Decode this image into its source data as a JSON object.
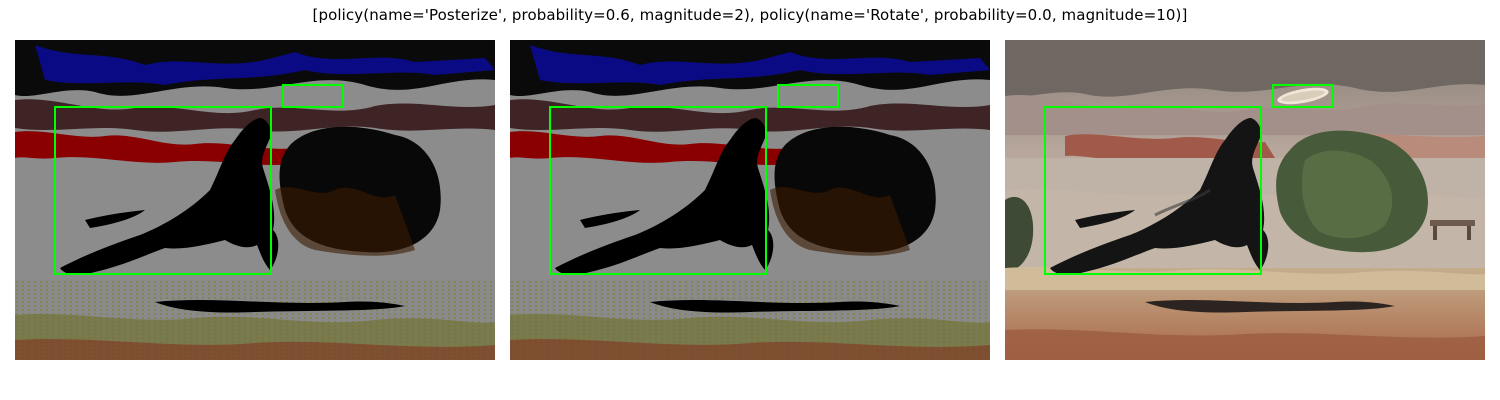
{
  "figure": {
    "title": "[policy(name='Posterize', probability=0.6, magnitude=2), policy(name='Rotate', probability=0.0, magnitude=10)]"
  },
  "panels": [
    {
      "variant": "posterized",
      "box_color": "#00ff00"
    },
    {
      "variant": "posterized",
      "box_color": "#00ff00"
    },
    {
      "variant": "original",
      "box_color": "#00ff00"
    }
  ]
}
